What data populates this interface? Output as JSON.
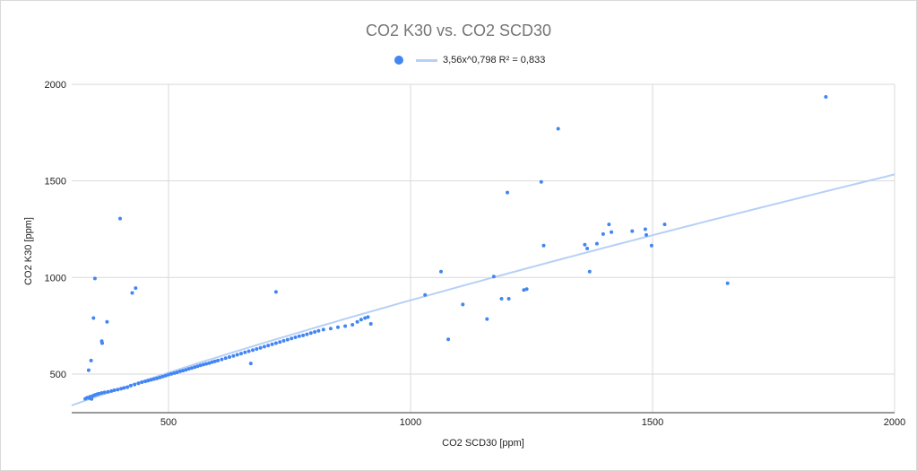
{
  "chart_data": {
    "type": "scatter",
    "title": "CO2 K30 vs. CO2 SCD30",
    "xlabel": "CO2 SCD30 [ppm]",
    "ylabel": "CO2 K30 [ppm]",
    "xlim": [
      300,
      2000
    ],
    "ylim": [
      300,
      2000
    ],
    "xticks": [
      500,
      1000,
      1500,
      2000
    ],
    "yticks": [
      500,
      1000,
      1500,
      2000
    ],
    "grid": true,
    "legend_position": "top-center",
    "trendline": {
      "type": "power",
      "a": 3.56,
      "b": 0.798,
      "r2": 0.833,
      "label": "3,56x^0,798 R² = 0,833"
    },
    "colors": {
      "points": "#4285f4",
      "trendline": "#b7d0f6",
      "grid": "#d9d9d9",
      "title": "#757575"
    },
    "series": [
      {
        "name": "CO2 K30",
        "points": [
          [
            328,
            372
          ],
          [
            332,
            378
          ],
          [
            336,
            376
          ],
          [
            338,
            383
          ],
          [
            341,
            371
          ],
          [
            344,
            388
          ],
          [
            348,
            392
          ],
          [
            352,
            395
          ],
          [
            356,
            398
          ],
          [
            362,
            402
          ],
          [
            368,
            405
          ],
          [
            375,
            408
          ],
          [
            382,
            412
          ],
          [
            388,
            416
          ],
          [
            395,
            420
          ],
          [
            402,
            424
          ],
          [
            408,
            428
          ],
          [
            415,
            432
          ],
          [
            422,
            440
          ],
          [
            430,
            446
          ],
          [
            438,
            452
          ],
          [
            445,
            458
          ],
          [
            452,
            462
          ],
          [
            458,
            466
          ],
          [
            464,
            470
          ],
          [
            470,
            474
          ],
          [
            476,
            478
          ],
          [
            482,
            482
          ],
          [
            488,
            487
          ],
          [
            494,
            492
          ],
          [
            500,
            497
          ],
          [
            506,
            501
          ],
          [
            512,
            505
          ],
          [
            518,
            509
          ],
          [
            524,
            514
          ],
          [
            530,
            518
          ],
          [
            536,
            522
          ],
          [
            542,
            527
          ],
          [
            548,
            531
          ],
          [
            554,
            536
          ],
          [
            560,
            540
          ],
          [
            566,
            545
          ],
          [
            572,
            549
          ],
          [
            578,
            553
          ],
          [
            584,
            557
          ],
          [
            590,
            562
          ],
          [
            596,
            566
          ],
          [
            602,
            570
          ],
          [
            610,
            576
          ],
          [
            618,
            582
          ],
          [
            626,
            588
          ],
          [
            634,
            594
          ],
          [
            642,
            600
          ],
          [
            650,
            606
          ],
          [
            658,
            612
          ],
          [
            666,
            618
          ],
          [
            674,
            624
          ],
          [
            682,
            630
          ],
          [
            690,
            636
          ],
          [
            698,
            642
          ],
          [
            706,
            648
          ],
          [
            714,
            654
          ],
          [
            722,
            660
          ],
          [
            730,
            666
          ],
          [
            738,
            672
          ],
          [
            746,
            678
          ],
          [
            754,
            684
          ],
          [
            762,
            690
          ],
          [
            770,
            696
          ],
          [
            778,
            700
          ],
          [
            786,
            706
          ],
          [
            794,
            712
          ],
          [
            802,
            718
          ],
          [
            810,
            724
          ],
          [
            820,
            730
          ],
          [
            835,
            735
          ],
          [
            850,
            742
          ],
          [
            865,
            748
          ],
          [
            880,
            755
          ],
          [
            890,
            770
          ],
          [
            898,
            782
          ],
          [
            906,
            790
          ],
          [
            912,
            795
          ],
          [
            918,
            760
          ],
          [
            335,
            520
          ],
          [
            340,
            570
          ],
          [
            345,
            790
          ],
          [
            348,
            995
          ],
          [
            362,
            670
          ],
          [
            363,
            660
          ],
          [
            373,
            770
          ],
          [
            400,
            1305
          ],
          [
            425,
            920
          ],
          [
            432,
            945
          ],
          [
            670,
            555
          ],
          [
            722,
            925
          ],
          [
            1030,
            910
          ],
          [
            1063,
            1030
          ],
          [
            1078,
            680
          ],
          [
            1108,
            860
          ],
          [
            1158,
            785
          ],
          [
            1172,
            1005
          ],
          [
            1188,
            890
          ],
          [
            1200,
            1440
          ],
          [
            1203,
            890
          ],
          [
            1234,
            935
          ],
          [
            1240,
            940
          ],
          [
            1270,
            1495
          ],
          [
            1275,
            1165
          ],
          [
            1305,
            1770
          ],
          [
            1360,
            1170
          ],
          [
            1365,
            1150
          ],
          [
            1370,
            1030
          ],
          [
            1385,
            1175
          ],
          [
            1398,
            1225
          ],
          [
            1410,
            1275
          ],
          [
            1415,
            1235
          ],
          [
            1458,
            1240
          ],
          [
            1485,
            1250
          ],
          [
            1487,
            1220
          ],
          [
            1498,
            1165
          ],
          [
            1525,
            1275
          ],
          [
            1655,
            970
          ],
          [
            1858,
            1935
          ]
        ]
      }
    ]
  }
}
